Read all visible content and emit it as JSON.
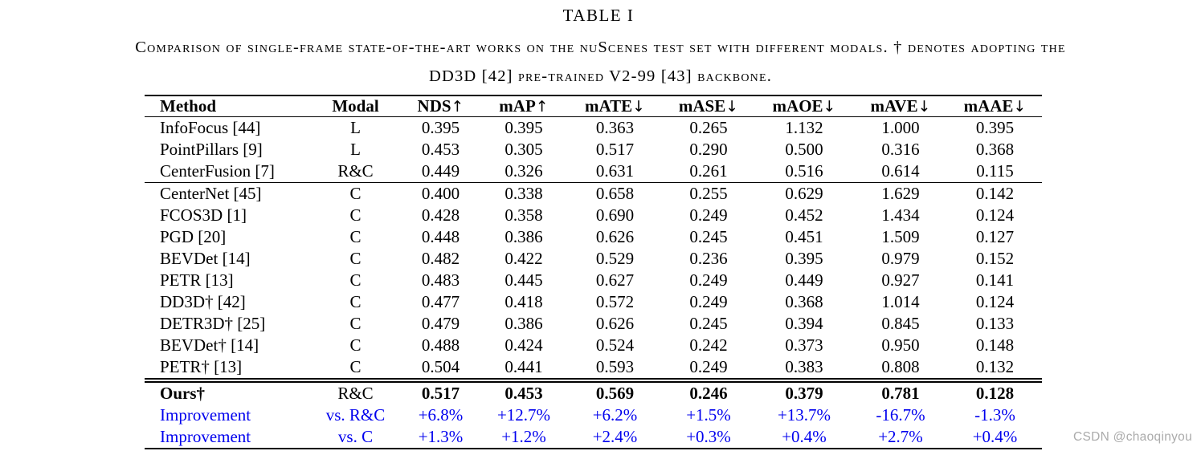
{
  "title": "TABLE I",
  "caption": {
    "line1": "Comparison of single-frame state-of-the-art works on the nuScenes test set with different modals. † denotes adopting the",
    "line2": "DD3D [42] pre-trained V2-99 [43] backbone."
  },
  "table": {
    "headers": [
      {
        "label": "Method",
        "arrow": ""
      },
      {
        "label": "Modal",
        "arrow": ""
      },
      {
        "label": "NDS",
        "arrow": "↑"
      },
      {
        "label": "mAP",
        "arrow": "↑"
      },
      {
        "label": "mATE",
        "arrow": "↓"
      },
      {
        "label": "mASE",
        "arrow": "↓"
      },
      {
        "label": "mAOE",
        "arrow": "↓"
      },
      {
        "label": "mAVE",
        "arrow": "↓"
      },
      {
        "label": "mAAE",
        "arrow": "↓"
      }
    ],
    "rows": [
      {
        "method": "InfoFocus [44]",
        "modal": "L",
        "values": [
          "0.395",
          "0.395",
          "0.363",
          "0.265",
          "1.132",
          "1.000",
          "0.395"
        ],
        "type": "normal"
      },
      {
        "method": "PointPillars [9]",
        "modal": "L",
        "values": [
          "0.453",
          "0.305",
          "0.517",
          "0.290",
          "0.500",
          "0.316",
          "0.368"
        ],
        "type": "normal"
      },
      {
        "method": "CenterFusion [7]",
        "modal": "R&C",
        "values": [
          "0.449",
          "0.326",
          "0.631",
          "0.261",
          "0.516",
          "0.614",
          "0.115"
        ],
        "type": "normal"
      },
      {
        "method": "CenterNet [45]",
        "modal": "C",
        "values": [
          "0.400",
          "0.338",
          "0.658",
          "0.255",
          "0.629",
          "1.629",
          "0.142"
        ],
        "type": "group-start"
      },
      {
        "method": "FCOS3D [1]",
        "modal": "C",
        "values": [
          "0.428",
          "0.358",
          "0.690",
          "0.249",
          "0.452",
          "1.434",
          "0.124"
        ],
        "type": "normal"
      },
      {
        "method": "PGD [20]",
        "modal": "C",
        "values": [
          "0.448",
          "0.386",
          "0.626",
          "0.245",
          "0.451",
          "1.509",
          "0.127"
        ],
        "type": "normal"
      },
      {
        "method": "BEVDet [14]",
        "modal": "C",
        "values": [
          "0.482",
          "0.422",
          "0.529",
          "0.236",
          "0.395",
          "0.979",
          "0.152"
        ],
        "type": "normal"
      },
      {
        "method": "PETR [13]",
        "modal": "C",
        "values": [
          "0.483",
          "0.445",
          "0.627",
          "0.249",
          "0.449",
          "0.927",
          "0.141"
        ],
        "type": "normal"
      },
      {
        "method": "DD3D† [42]",
        "modal": "C",
        "values": [
          "0.477",
          "0.418",
          "0.572",
          "0.249",
          "0.368",
          "1.014",
          "0.124"
        ],
        "type": "normal"
      },
      {
        "method": "DETR3D† [25]",
        "modal": "C",
        "values": [
          "0.479",
          "0.386",
          "0.626",
          "0.245",
          "0.394",
          "0.845",
          "0.133"
        ],
        "type": "normal"
      },
      {
        "method": "BEVDet† [14]",
        "modal": "C",
        "values": [
          "0.488",
          "0.424",
          "0.524",
          "0.242",
          "0.373",
          "0.950",
          "0.148"
        ],
        "type": "normal"
      },
      {
        "method": "PETR† [13]",
        "modal": "C",
        "values": [
          "0.504",
          "0.441",
          "0.593",
          "0.249",
          "0.383",
          "0.808",
          "0.132"
        ],
        "type": "normal"
      },
      {
        "method": "Ours†",
        "modal": "R&C",
        "values": [
          "0.517",
          "0.453",
          "0.569",
          "0.246",
          "0.379",
          "0.781",
          "0.128"
        ],
        "type": "ours"
      },
      {
        "method": "Improvement",
        "modal": "vs. R&C",
        "values": [
          "+6.8%",
          "+12.7%",
          "+6.2%",
          "+1.5%",
          "+13.7%",
          "-16.7%",
          "-1.3%"
        ],
        "type": "improvement"
      },
      {
        "method": "Improvement",
        "modal": "vs. C",
        "values": [
          "+1.3%",
          "+1.2%",
          "+2.4%",
          "+0.3%",
          "+0.4%",
          "+2.7%",
          "+0.4%"
        ],
        "type": "improvement"
      }
    ]
  },
  "watermark": "CSDN @chaoqinyou",
  "colors": {
    "improvement_blue": "#0000EE",
    "watermark_gray": "#ABABAB"
  }
}
